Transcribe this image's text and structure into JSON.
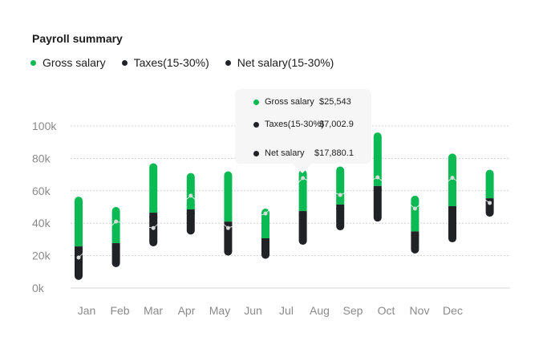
{
  "title": "Payroll summary",
  "colors": {
    "gross": "#0bba52",
    "taxes": "#212226",
    "net_line": "#d9d9d9"
  },
  "legend": [
    {
      "label": "Gross salary",
      "color": "#0bba52"
    },
    {
      "label": "Taxes(15-30%)",
      "color": "#212226"
    },
    {
      "label": "Net salary(15-30%)",
      "color": "#212226"
    }
  ],
  "tooltip": {
    "rows": [
      {
        "label": "Gross salary",
        "value": "$25,543",
        "color": "#0bba52"
      },
      {
        "label": "Taxes(15-30%)",
        "value": "$7,002.9",
        "color": "#212226"
      },
      {
        "label": "Net salary",
        "value": "$17,880.1",
        "color": "#212226"
      }
    ]
  },
  "chart_data": {
    "type": "bar",
    "subtype": "floating-range-bars-with-line",
    "categories": [
      "Jan",
      "Feb",
      "Mar",
      "Apr",
      "May",
      "Jun",
      "Jul",
      "Aug",
      "Sep",
      "Oct",
      "Nov",
      "Dec"
    ],
    "ylim": [
      0,
      100000
    ],
    "yticks": [
      "0k",
      "20k",
      "40k",
      "60k",
      "80k",
      "100k"
    ],
    "ytick_values": [
      0,
      20000,
      40000,
      60000,
      80000,
      100000
    ],
    "grid": true,
    "legend_position": "top-left",
    "series": [
      {
        "name": "Gross salary",
        "ranges": [
          [
            25700,
            56400
          ],
          [
            27700,
            50000
          ],
          [
            46500,
            77000
          ],
          [
            48500,
            71000
          ],
          [
            41000,
            72000
          ],
          [
            30700,
            49000
          ],
          [
            47500,
            73000
          ],
          [
            51500,
            75000
          ],
          [
            63000,
            96000
          ],
          [
            35000,
            57000
          ],
          [
            50500,
            83000
          ],
          [
            55400,
            73000
          ]
        ]
      },
      {
        "name": "Taxes(15-30%)",
        "ranges": [
          [
            5000,
            25700
          ],
          [
            12900,
            27700
          ],
          [
            25700,
            46500
          ],
          [
            33000,
            48500
          ],
          [
            20000,
            41000
          ],
          [
            18000,
            30700
          ],
          [
            26700,
            47500
          ],
          [
            35600,
            51500
          ],
          [
            41000,
            63000
          ],
          [
            21300,
            35000
          ],
          [
            28200,
            50500
          ],
          [
            44000,
            55400
          ]
        ]
      },
      {
        "name": "Net salary(15-30%)",
        "values": [
          18800,
          41000,
          37000,
          57000,
          37000,
          46000,
          67800,
          57400,
          68300,
          49000,
          68000,
          52500
        ]
      }
    ]
  }
}
